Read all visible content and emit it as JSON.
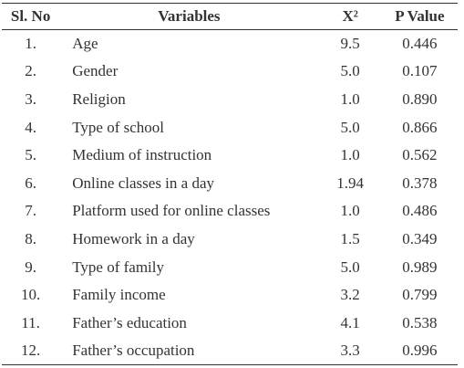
{
  "table": {
    "header": [
      "Sl. No",
      "Variables",
      "X²",
      "P Value"
    ],
    "rows": [
      [
        "1.",
        "Age",
        "9.5",
        "0.446"
      ],
      [
        "2.",
        "Gender",
        "5.0",
        "0.107"
      ],
      [
        "3.",
        "Religion",
        "1.0",
        "0.890"
      ],
      [
        "4.",
        "Type of school",
        "5.0",
        "0.866"
      ],
      [
        "5.",
        "Medium of instruction",
        "1.0",
        "0.562"
      ],
      [
        "6.",
        "Online classes in a day",
        "1.94",
        "0.378"
      ],
      [
        "7.",
        "Platform used for online classes",
        "1.0",
        "0.486"
      ],
      [
        "8.",
        "Homework in a day",
        "1.5",
        "0.349"
      ],
      [
        "9.",
        "Type of family",
        "5.0",
        "0.989"
      ],
      [
        "10.",
        "Family income",
        "3.2",
        "0.799"
      ],
      [
        "11.",
        "Father’s education",
        "4.1",
        "0.538"
      ],
      [
        "12.",
        "Father’s occupation",
        "3.3",
        "0.996"
      ]
    ]
  }
}
